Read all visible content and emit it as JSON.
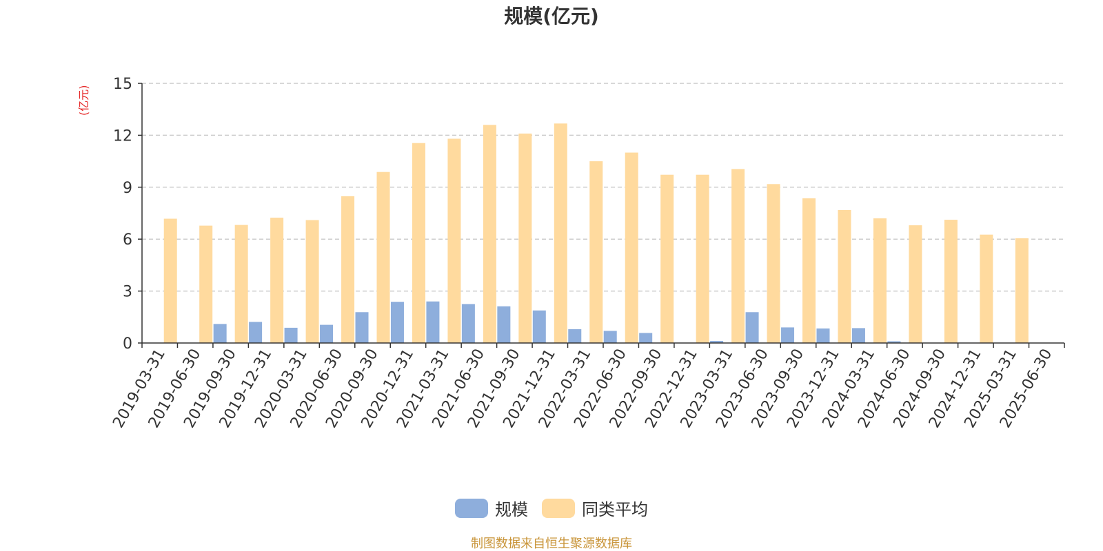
{
  "chart_data": {
    "type": "bar",
    "title": "规模(亿元)",
    "ylabel": "(亿元)",
    "xlabel": "",
    "ylim": [
      0,
      15
    ],
    "yticks": [
      0,
      3,
      6,
      9,
      12,
      15
    ],
    "grid": true,
    "legend_position": "bottom",
    "categories": [
      "2019-03-31",
      "2019-06-30",
      "2019-09-30",
      "2019-12-31",
      "2020-03-31",
      "2020-06-30",
      "2020-09-30",
      "2020-12-31",
      "2021-03-31",
      "2021-06-30",
      "2021-09-30",
      "2021-12-31",
      "2022-03-31",
      "2022-06-30",
      "2022-09-30",
      "2022-12-31",
      "2023-03-31",
      "2023-06-30",
      "2023-09-30",
      "2023-12-31",
      "2024-03-31",
      "2024-06-30",
      "2024-09-30",
      "2024-12-31",
      "2025-03-31",
      "2025-06-30"
    ],
    "series": [
      {
        "name": "规模",
        "color": "#8eaedc",
        "values": [
          0,
          0,
          1.1,
          1.22,
          0.88,
          1.05,
          1.78,
          2.38,
          2.4,
          2.25,
          2.12,
          1.88,
          0.8,
          0.7,
          0.58,
          0.02,
          0.12,
          1.78,
          0.9,
          0.84,
          0.86,
          0.1,
          0,
          0,
          0,
          0
        ]
      },
      {
        "name": "同类平均",
        "color": "#ffda9e",
        "values": [
          7.18,
          6.78,
          6.82,
          7.24,
          7.1,
          8.48,
          9.88,
          11.55,
          11.8,
          12.6,
          12.1,
          12.68,
          10.5,
          11.0,
          9.72,
          9.72,
          10.05,
          9.18,
          8.36,
          7.68,
          7.2,
          6.8,
          7.12,
          6.26,
          6.05,
          0
        ]
      }
    ]
  },
  "source_note": "制图数据来自恒生聚源数据库"
}
